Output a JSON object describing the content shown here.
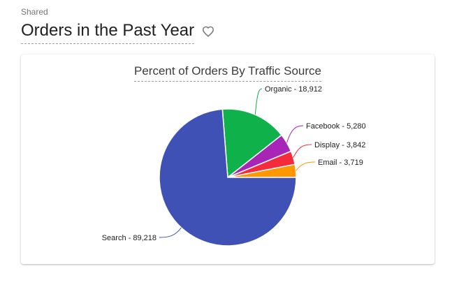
{
  "header": {
    "shared_label": "Shared",
    "title": "Orders in the Past Year",
    "favorite_icon": "heart-outline-icon"
  },
  "chart_data": {
    "type": "pie",
    "title": "Percent of Orders By Traffic Source",
    "slices": [
      {
        "name": "Search",
        "value": 89218,
        "label": "Search - 89,218",
        "color": "#3f51b5"
      },
      {
        "name": "Organic",
        "value": 18912,
        "label": "Organic - 18,912",
        "color": "#0fb14a"
      },
      {
        "name": "Facebook",
        "value": 5280,
        "label": "Facebook - 5,280",
        "color": "#a726b8"
      },
      {
        "name": "Display",
        "value": 3842,
        "label": "Display - 3,842",
        "color": "#f32b3a"
      },
      {
        "name": "Email",
        "value": 3719,
        "label": "Email - 3,719",
        "color": "#ff9800"
      }
    ]
  }
}
